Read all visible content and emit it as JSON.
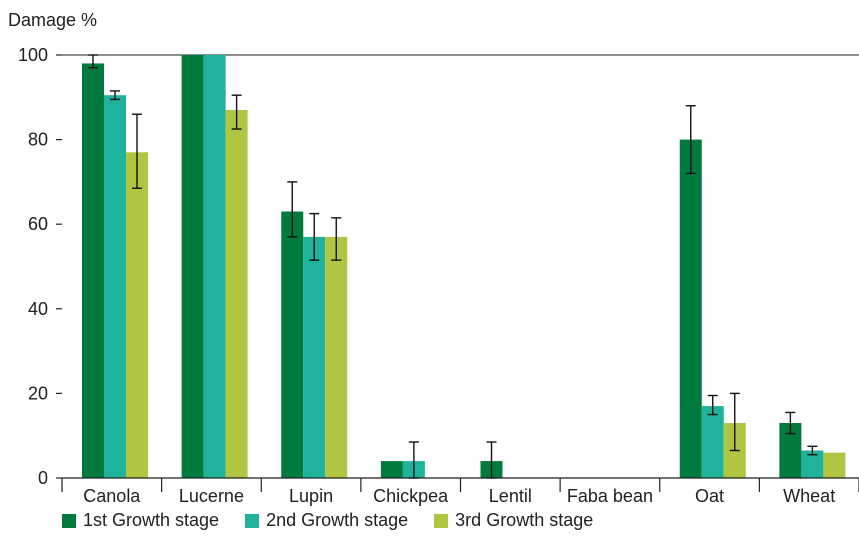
{
  "chart_data": {
    "type": "bar",
    "title": "",
    "ylabel": "Damage %",
    "xlabel": "",
    "ylim": [
      0,
      100
    ],
    "yticks": [
      0,
      20,
      40,
      60,
      80,
      100
    ],
    "categories": [
      "Canola",
      "Lucerne",
      "Lupin",
      "Chickpea",
      "Lentil",
      "Faba bean",
      "Oat",
      "Wheat"
    ],
    "series": [
      {
        "name": "1st Growth stage",
        "color": "#007a3d",
        "values": [
          98,
          100,
          63,
          4,
          4,
          0,
          80,
          13
        ],
        "errors": [
          [
            97,
            100
          ],
          null,
          [
            57,
            70
          ],
          null,
          [
            0,
            8.5
          ],
          null,
          [
            72,
            88
          ],
          [
            10.5,
            15.5
          ]
        ]
      },
      {
        "name": "2nd Growth stage",
        "color": "#1fb39e",
        "values": [
          90.5,
          100,
          57,
          4,
          0,
          0,
          17,
          6.5
        ],
        "errors": [
          [
            89.5,
            91.5
          ],
          null,
          [
            51.5,
            62.5
          ],
          [
            0,
            8.5
          ],
          null,
          null,
          [
            15,
            19.5
          ],
          [
            5.5,
            7.5
          ]
        ]
      },
      {
        "name": "3rd Growth stage",
        "color": "#b2c543",
        "values": [
          77,
          87,
          57,
          0,
          0,
          0,
          13,
          6
        ],
        "errors": [
          [
            68.5,
            86
          ],
          [
            82.5,
            90.5
          ],
          [
            51.5,
            61.5
          ],
          null,
          null,
          null,
          [
            6.5,
            20
          ],
          null
        ]
      }
    ],
    "legend_position": "bottom-left",
    "grid": false
  }
}
